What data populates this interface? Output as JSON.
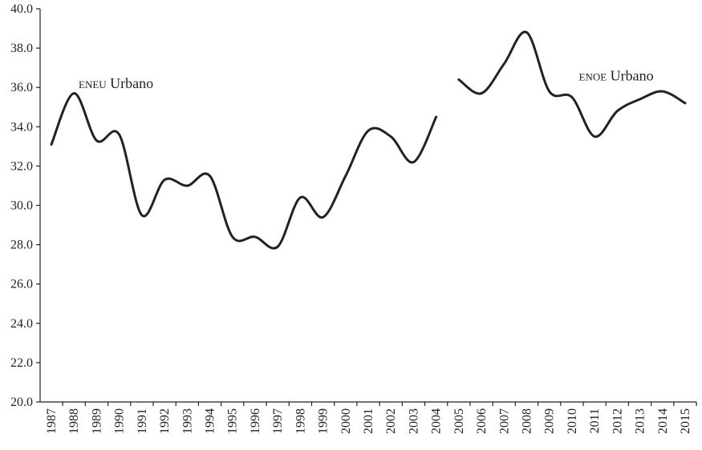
{
  "chart_data": {
    "type": "line",
    "title": "",
    "xlabel": "",
    "ylabel": "",
    "ylim": [
      20.0,
      40.0
    ],
    "yticks": [
      "20.0",
      "22.0",
      "24.0",
      "26.0",
      "28.0",
      "30.0",
      "32.0",
      "34.0",
      "36.0",
      "38.0",
      "40.0"
    ],
    "x_tick_labels": [
      "1987",
      "1988",
      "1989",
      "1990",
      "1991",
      "1992",
      "1993",
      "1994",
      "1995",
      "1996",
      "1997",
      "1998",
      "1999",
      "2000",
      "2001",
      "2002",
      "2003",
      "2004",
      "2005",
      "2006",
      "2007",
      "2008",
      "2009",
      "2010",
      "2011",
      "2012",
      "2013",
      "2014",
      "2015"
    ],
    "grid": false,
    "line_color": "#222222",
    "series": [
      {
        "name": "eneu Urbano",
        "x": [
          1987,
          1988,
          1989,
          1990,
          1991,
          1992,
          1993,
          1994,
          1995,
          1996,
          1997,
          1998,
          1999,
          2000,
          2001,
          2002,
          2003,
          2004
        ],
        "values": [
          33.1,
          35.7,
          33.3,
          33.6,
          29.5,
          31.3,
          31.0,
          31.5,
          28.4,
          28.4,
          27.9,
          30.4,
          29.4,
          31.5,
          33.8,
          33.5,
          32.2,
          34.5
        ]
      },
      {
        "name": "enoe Urbano",
        "x": [
          2005,
          2006,
          2007,
          2008,
          2009,
          2010,
          2011,
          2012,
          2013,
          2014,
          2015
        ],
        "values": [
          36.4,
          35.7,
          37.2,
          38.8,
          35.8,
          35.5,
          33.5,
          34.8,
          35.4,
          35.8,
          35.2
        ]
      }
    ]
  }
}
